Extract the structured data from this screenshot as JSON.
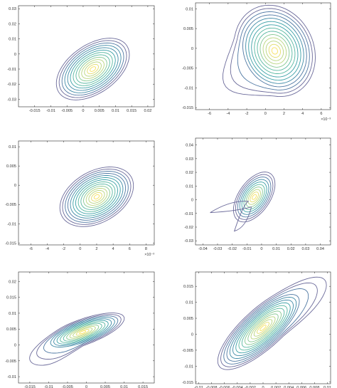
{
  "figure": {
    "background": "#ffffff",
    "axis_color": "#262626",
    "colormap": [
      "#440154",
      "#46327e",
      "#365c8d",
      "#277f8e",
      "#1fa187",
      "#4ac16d",
      "#a0da39",
      "#fde725"
    ],
    "line_colors": [
      "#6b6a9a",
      "#4f78a3",
      "#3f8aa6",
      "#3aa0a6",
      "#56b7a0",
      "#86c893",
      "#b8d57e",
      "#e3dd6c",
      "#f7e25e"
    ]
  },
  "chart_data": [
    {
      "type": "contour",
      "panel": "top-left",
      "xlim": [
        -0.02,
        0.022
      ],
      "ylim": [
        -0.035,
        0.032
      ],
      "xticks": [
        -0.015,
        -0.01,
        -0.005,
        0,
        0.005,
        0.01,
        0.015,
        0.02
      ],
      "xtick_labels": [
        "-0.015",
        "-0.01",
        "-0.005",
        "0",
        "0.005",
        "0.01",
        "0.015",
        "0.02"
      ],
      "yticks": [
        -0.03,
        -0.02,
        -0.01,
        0,
        0.01,
        0.02,
        0.03
      ],
      "ytick_labels": [
        "-0.03",
        "-0.02",
        "-0.01",
        "0",
        "0.01",
        "0.02",
        "0.03"
      ],
      "x_exponent": "",
      "center": [
        0.003,
        -0.01
      ],
      "levels": 13,
      "note_shape": "elliptical density tilted upward-right"
    },
    {
      "type": "contour",
      "panel": "top-right",
      "xlim": [
        -0.0075,
        0.007
      ],
      "ylim": [
        -0.0155,
        0.0115
      ],
      "xticks": [
        -0.006,
        -0.004,
        -0.002,
        0,
        0.002,
        0.004,
        0.006
      ],
      "xtick_labels": [
        "-6",
        "-4",
        "-2",
        "0",
        "2",
        "4",
        "6"
      ],
      "yticks": [
        -0.015,
        -0.01,
        -0.005,
        0,
        0.005,
        0.01
      ],
      "ytick_labels": [
        "-0.015",
        "-0.01",
        "-0.005",
        "0",
        "0.005",
        "0.01"
      ],
      "x_exponent": "×10⁻³",
      "center": [
        0.001,
        -0.001
      ],
      "levels": 14,
      "note_shape": "outer contour with lower-left tail"
    },
    {
      "type": "contour",
      "panel": "middle-left",
      "xlim": [
        -0.0075,
        0.009
      ],
      "ylim": [
        -0.0155,
        0.0115
      ],
      "xticks": [
        -0.006,
        -0.004,
        -0.002,
        0,
        0.002,
        0.004,
        0.006,
        0.008
      ],
      "xtick_labels": [
        "-6",
        "-4",
        "-2",
        "0",
        "2",
        "4",
        "6",
        "8"
      ],
      "yticks": [
        -0.015,
        -0.01,
        -0.005,
        0,
        0.005,
        0.01
      ],
      "ytick_labels": [
        "-0.015",
        "-0.01",
        "-0.005",
        "0",
        "0.005",
        "0.01"
      ],
      "x_exponent": "×10⁻³",
      "center": [
        0.002,
        -0.003
      ],
      "levels": 14,
      "note_shape": "elliptical density tilted upward-right"
    },
    {
      "type": "contour",
      "panel": "middle-right",
      "xlim": [
        -0.045,
        0.047
      ],
      "ylim": [
        -0.033,
        0.045
      ],
      "xticks": [
        -0.04,
        -0.03,
        -0.02,
        -0.01,
        0,
        0.01,
        0.02,
        0.03,
        0.04
      ],
      "xtick_labels": [
        "-0.04",
        "-0.03",
        "-0.02",
        "-0.01",
        "0",
        "0.01",
        "0.02",
        "0.03",
        "0.04"
      ],
      "yticks": [
        -0.03,
        -0.02,
        -0.01,
        0,
        0.01,
        0.02,
        0.03,
        0.04
      ],
      "ytick_labels": [
        "-0.03",
        "-0.02",
        "-0.01",
        "0",
        "0.01",
        "0.02",
        "0.03",
        "0.04"
      ],
      "x_exponent": "",
      "center": [
        -0.005,
        0.002
      ],
      "levels": 10,
      "note_shape": "outer contour with two lower-left lobes"
    },
    {
      "type": "contour",
      "panel": "bottom-left",
      "xlim": [
        -0.018,
        0.018
      ],
      "ylim": [
        -0.012,
        0.023
      ],
      "xticks": [
        -0.015,
        -0.01,
        -0.005,
        0,
        0.005,
        0.01,
        0.015
      ],
      "xtick_labels": [
        "-0.015",
        "-0.01",
        "-0.005",
        "0",
        "0.005",
        "0.01",
        "0.015"
      ],
      "yticks": [
        -0.01,
        -0.005,
        0,
        0.005,
        0.01,
        0.015,
        0.02
      ],
      "ytick_labels": [
        "-0.01",
        "-0.005",
        "0",
        "0.005",
        "0.01",
        "0.015",
        "0.02"
      ],
      "x_exponent": "",
      "center": [
        -0.001,
        0.004
      ],
      "levels": 13,
      "note_shape": "elongated density with lower-left tail"
    },
    {
      "type": "contour",
      "panel": "bottom-right",
      "xlim": [
        -0.0105,
        0.0105
      ],
      "ylim": [
        -0.0155,
        0.0195
      ],
      "xticks": [
        -0.01,
        -0.008,
        -0.006,
        -0.004,
        -0.002,
        0,
        0.002,
        0.004,
        0.006,
        0.008,
        0.01
      ],
      "xtick_labels": [
        "-0.01",
        "-0.008",
        "-0.006",
        "-0.004",
        "-0.002",
        "0",
        "0.002",
        "0.004",
        "0.006",
        "0.008",
        "0.01"
      ],
      "yticks": [
        -0.015,
        -0.01,
        -0.005,
        0,
        0.005,
        0.01,
        0.015
      ],
      "ytick_labels": [
        "-0.015",
        "-0.01",
        "-0.005",
        "0",
        "0.005",
        "0.01",
        "0.015"
      ],
      "x_exponent": "",
      "center": [
        0.0,
        0.002
      ],
      "levels": 15,
      "note_shape": "elongated density extending upper-right"
    }
  ]
}
